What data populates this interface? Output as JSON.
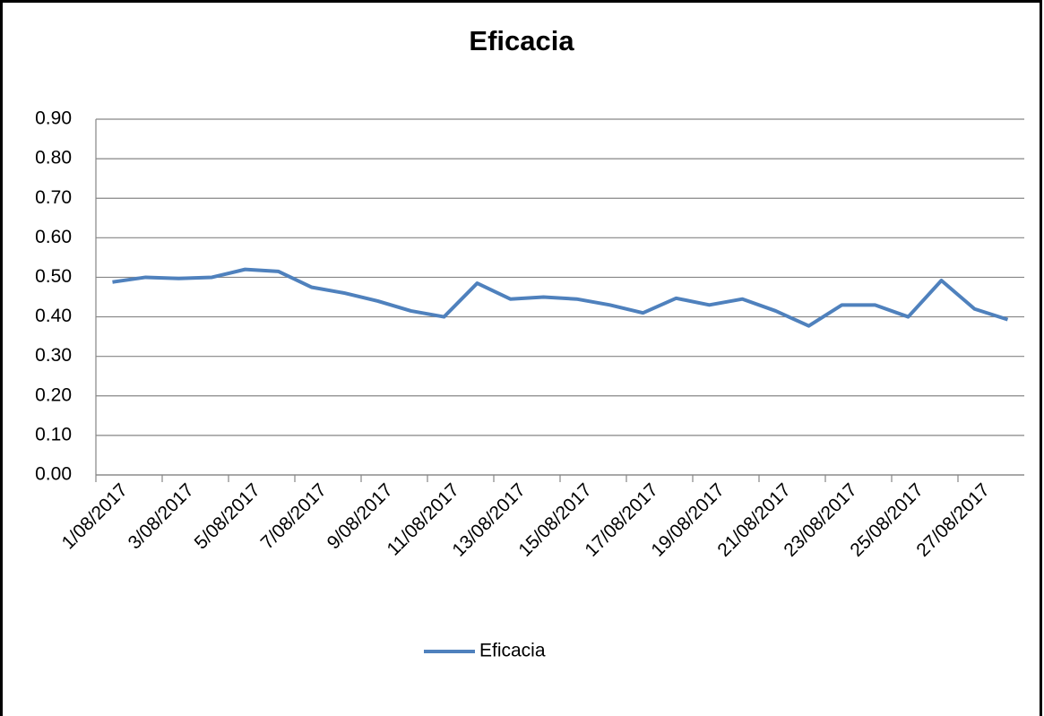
{
  "chart_data": {
    "type": "line",
    "title": "Eficacia",
    "categories": [
      "1/08/2017",
      null,
      "3/08/2017",
      null,
      "5/08/2017",
      null,
      "7/08/2017",
      null,
      "9/08/2017",
      null,
      "11/08/2017",
      null,
      "13/08/2017",
      null,
      "15/08/2017",
      null,
      "17/08/2017",
      null,
      "19/08/2017",
      null,
      "21/08/2017",
      null,
      "23/08/2017",
      null,
      "25/08/2017",
      null,
      "27/08/2017",
      null
    ],
    "series": [
      {
        "name": "Eficacia",
        "color": "#4f81bd",
        "values": [
          0.488,
          0.5,
          0.497,
          0.5,
          0.52,
          0.515,
          0.475,
          0.46,
          0.44,
          0.415,
          0.4,
          0.485,
          0.445,
          0.45,
          0.445,
          0.43,
          0.41,
          0.447,
          0.43,
          0.445,
          0.415,
          0.377,
          0.43,
          0.43,
          0.4,
          0.492,
          0.42,
          0.393
        ]
      }
    ],
    "ylim": [
      0,
      0.9
    ],
    "yticks": [
      {
        "value": 0,
        "label": "0.00"
      },
      {
        "value": 0.1,
        "label": "0.10"
      },
      {
        "value": 0.2,
        "label": "0.20"
      },
      {
        "value": 0.3,
        "label": "0.30"
      },
      {
        "value": 0.4,
        "label": "0.40"
      },
      {
        "value": 0.5,
        "label": "0.50"
      },
      {
        "value": 0.6,
        "label": "0.60"
      },
      {
        "value": 0.7,
        "label": "0.70"
      },
      {
        "value": 0.8,
        "label": "0.80"
      },
      {
        "value": 0.9,
        "label": "0.90"
      }
    ],
    "grid": true,
    "legend": "bottom"
  }
}
